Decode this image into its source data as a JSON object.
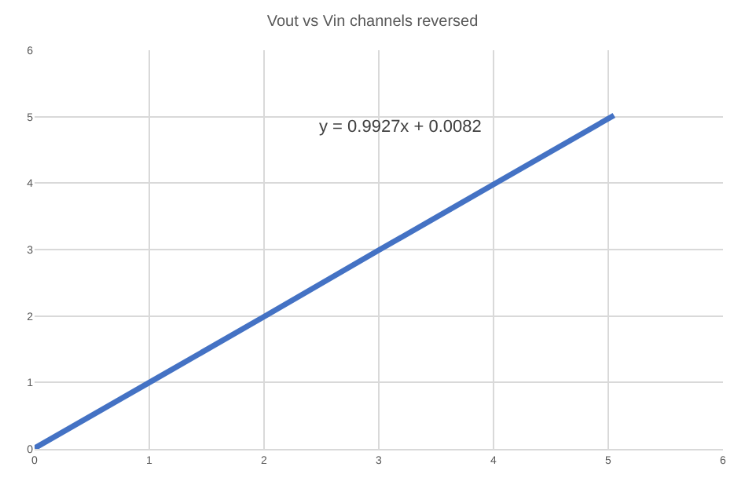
{
  "chart_data": {
    "type": "line",
    "title": "Vout vs Vin channels reversed",
    "x": [
      0,
      1,
      2,
      3,
      4,
      5.05
    ],
    "series": [
      {
        "color": "#4472c4",
        "values": [
          0.01,
          1.0,
          1.99,
          2.99,
          3.98,
          5.02
        ]
      }
    ],
    "xlim": [
      0,
      6
    ],
    "xticks": [
      0,
      1,
      2,
      3,
      4,
      5,
      6
    ],
    "ylim": [
      0,
      6
    ],
    "yticks": [
      0,
      1,
      2,
      3,
      4,
      5,
      6
    ],
    "grid": true,
    "marker": "none",
    "line_style": "solid",
    "annotations": [
      "y = 0.9927x + 0.0082"
    ]
  }
}
